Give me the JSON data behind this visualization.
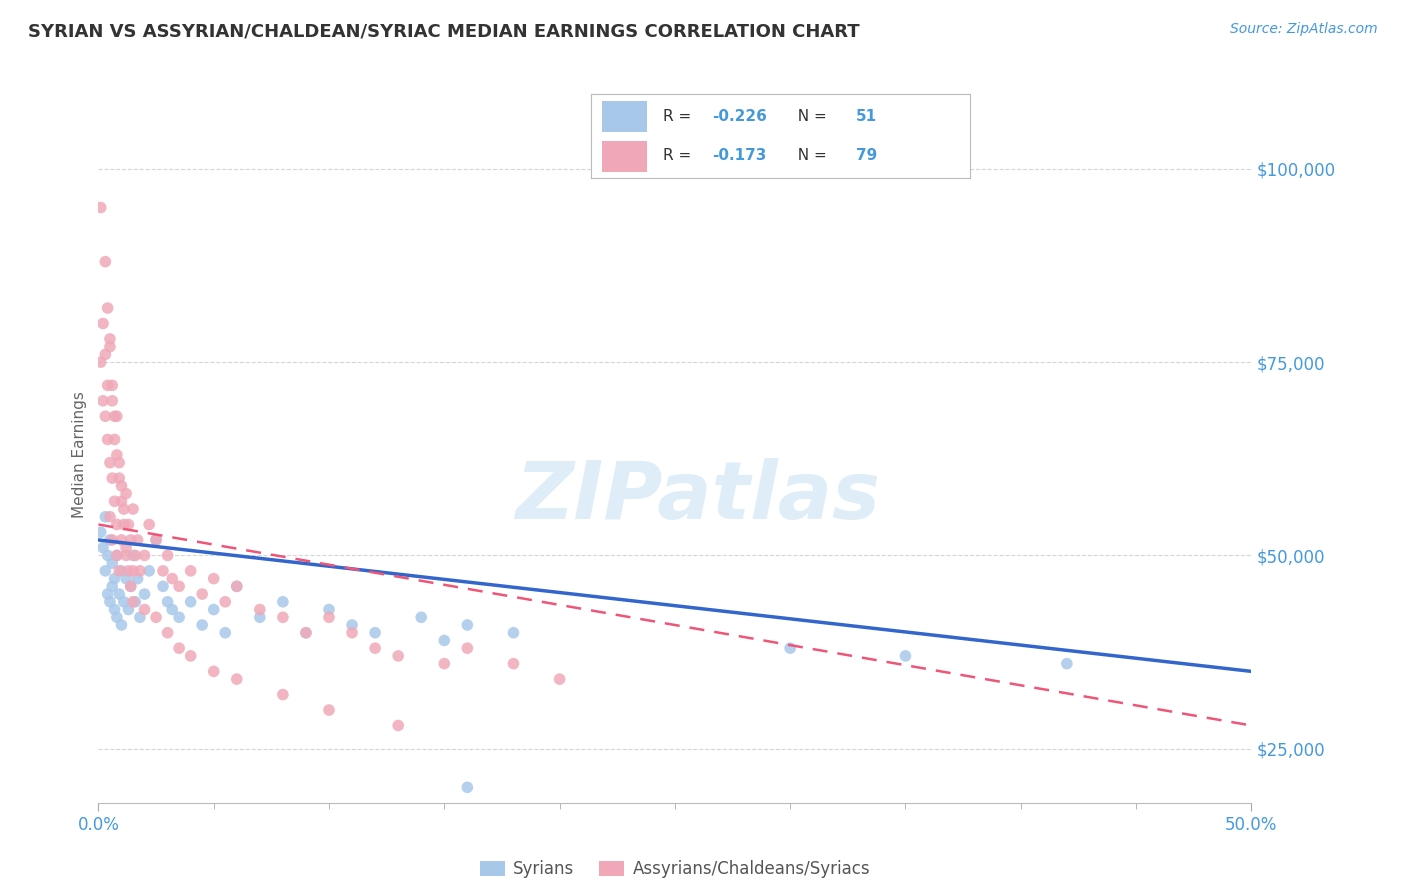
{
  "title": "SYRIAN VS ASSYRIAN/CHALDEAN/SYRIAC MEDIAN EARNINGS CORRELATION CHART",
  "source_text": "Source: ZipAtlas.com",
  "ylabel": "Median Earnings",
  "xlim": [
    0.0,
    0.5
  ],
  "ylim": [
    18000,
    108000
  ],
  "yticks": [
    25000,
    50000,
    75000,
    100000
  ],
  "ytick_labels": [
    "$25,000",
    "$50,000",
    "$75,000",
    "$100,000"
  ],
  "xtick_labels": [
    "0.0%",
    "50.0%"
  ],
  "xtick_positions": [
    0.0,
    0.5
  ],
  "legend_labels": [
    "Syrians",
    "Assyrians/Chaldeans/Syriacs"
  ],
  "legend_R": [
    -0.226,
    -0.173
  ],
  "legend_N": [
    51,
    79
  ],
  "watermark": "ZIPatlas",
  "background_color": "#ffffff",
  "grid_color": "#cccccc",
  "title_color": "#333333",
  "axis_label_color": "#4499dd",
  "scatter_color_blue": "#a8c8ea",
  "scatter_color_pink": "#f0a8b8",
  "line_color_blue": "#3366cc",
  "line_color_pink": "#ee5577",
  "syrians_x": [
    0.001,
    0.002,
    0.003,
    0.003,
    0.004,
    0.004,
    0.005,
    0.005,
    0.006,
    0.006,
    0.007,
    0.007,
    0.008,
    0.008,
    0.009,
    0.01,
    0.01,
    0.011,
    0.012,
    0.013,
    0.014,
    0.015,
    0.016,
    0.017,
    0.018,
    0.02,
    0.022,
    0.025,
    0.028,
    0.03,
    0.032,
    0.035,
    0.04,
    0.045,
    0.05,
    0.055,
    0.06,
    0.07,
    0.08,
    0.09,
    0.1,
    0.11,
    0.12,
    0.14,
    0.15,
    0.16,
    0.18,
    0.3,
    0.35,
    0.42,
    0.16
  ],
  "syrians_y": [
    53000,
    51000,
    55000,
    48000,
    50000,
    45000,
    52000,
    44000,
    46000,
    49000,
    47000,
    43000,
    50000,
    42000,
    45000,
    48000,
    41000,
    44000,
    47000,
    43000,
    46000,
    50000,
    44000,
    47000,
    42000,
    45000,
    48000,
    52000,
    46000,
    44000,
    43000,
    42000,
    44000,
    41000,
    43000,
    40000,
    46000,
    42000,
    44000,
    40000,
    43000,
    41000,
    40000,
    42000,
    39000,
    41000,
    40000,
    38000,
    37000,
    36000,
    20000
  ],
  "assyrians_x": [
    0.001,
    0.001,
    0.002,
    0.002,
    0.003,
    0.003,
    0.004,
    0.004,
    0.005,
    0.005,
    0.005,
    0.006,
    0.006,
    0.006,
    0.007,
    0.007,
    0.008,
    0.008,
    0.008,
    0.009,
    0.009,
    0.01,
    0.01,
    0.011,
    0.012,
    0.012,
    0.013,
    0.014,
    0.015,
    0.015,
    0.016,
    0.017,
    0.018,
    0.02,
    0.022,
    0.025,
    0.028,
    0.03,
    0.032,
    0.035,
    0.04,
    0.045,
    0.05,
    0.055,
    0.06,
    0.07,
    0.08,
    0.09,
    0.1,
    0.11,
    0.12,
    0.13,
    0.15,
    0.16,
    0.18,
    0.2,
    0.003,
    0.004,
    0.005,
    0.006,
    0.007,
    0.008,
    0.009,
    0.01,
    0.011,
    0.012,
    0.013,
    0.014,
    0.015,
    0.02,
    0.025,
    0.03,
    0.035,
    0.04,
    0.05,
    0.06,
    0.08,
    0.1,
    0.13
  ],
  "assyrians_y": [
    95000,
    75000,
    80000,
    70000,
    76000,
    68000,
    72000,
    65000,
    78000,
    62000,
    55000,
    70000,
    60000,
    52000,
    65000,
    57000,
    68000,
    54000,
    50000,
    62000,
    48000,
    59000,
    52000,
    56000,
    58000,
    50000,
    54000,
    52000,
    56000,
    48000,
    50000,
    52000,
    48000,
    50000,
    54000,
    52000,
    48000,
    50000,
    47000,
    46000,
    48000,
    45000,
    47000,
    44000,
    46000,
    43000,
    42000,
    40000,
    42000,
    40000,
    38000,
    37000,
    36000,
    38000,
    36000,
    34000,
    88000,
    82000,
    77000,
    72000,
    68000,
    63000,
    60000,
    57000,
    54000,
    51000,
    48000,
    46000,
    44000,
    43000,
    42000,
    40000,
    38000,
    37000,
    35000,
    34000,
    32000,
    30000,
    28000
  ]
}
